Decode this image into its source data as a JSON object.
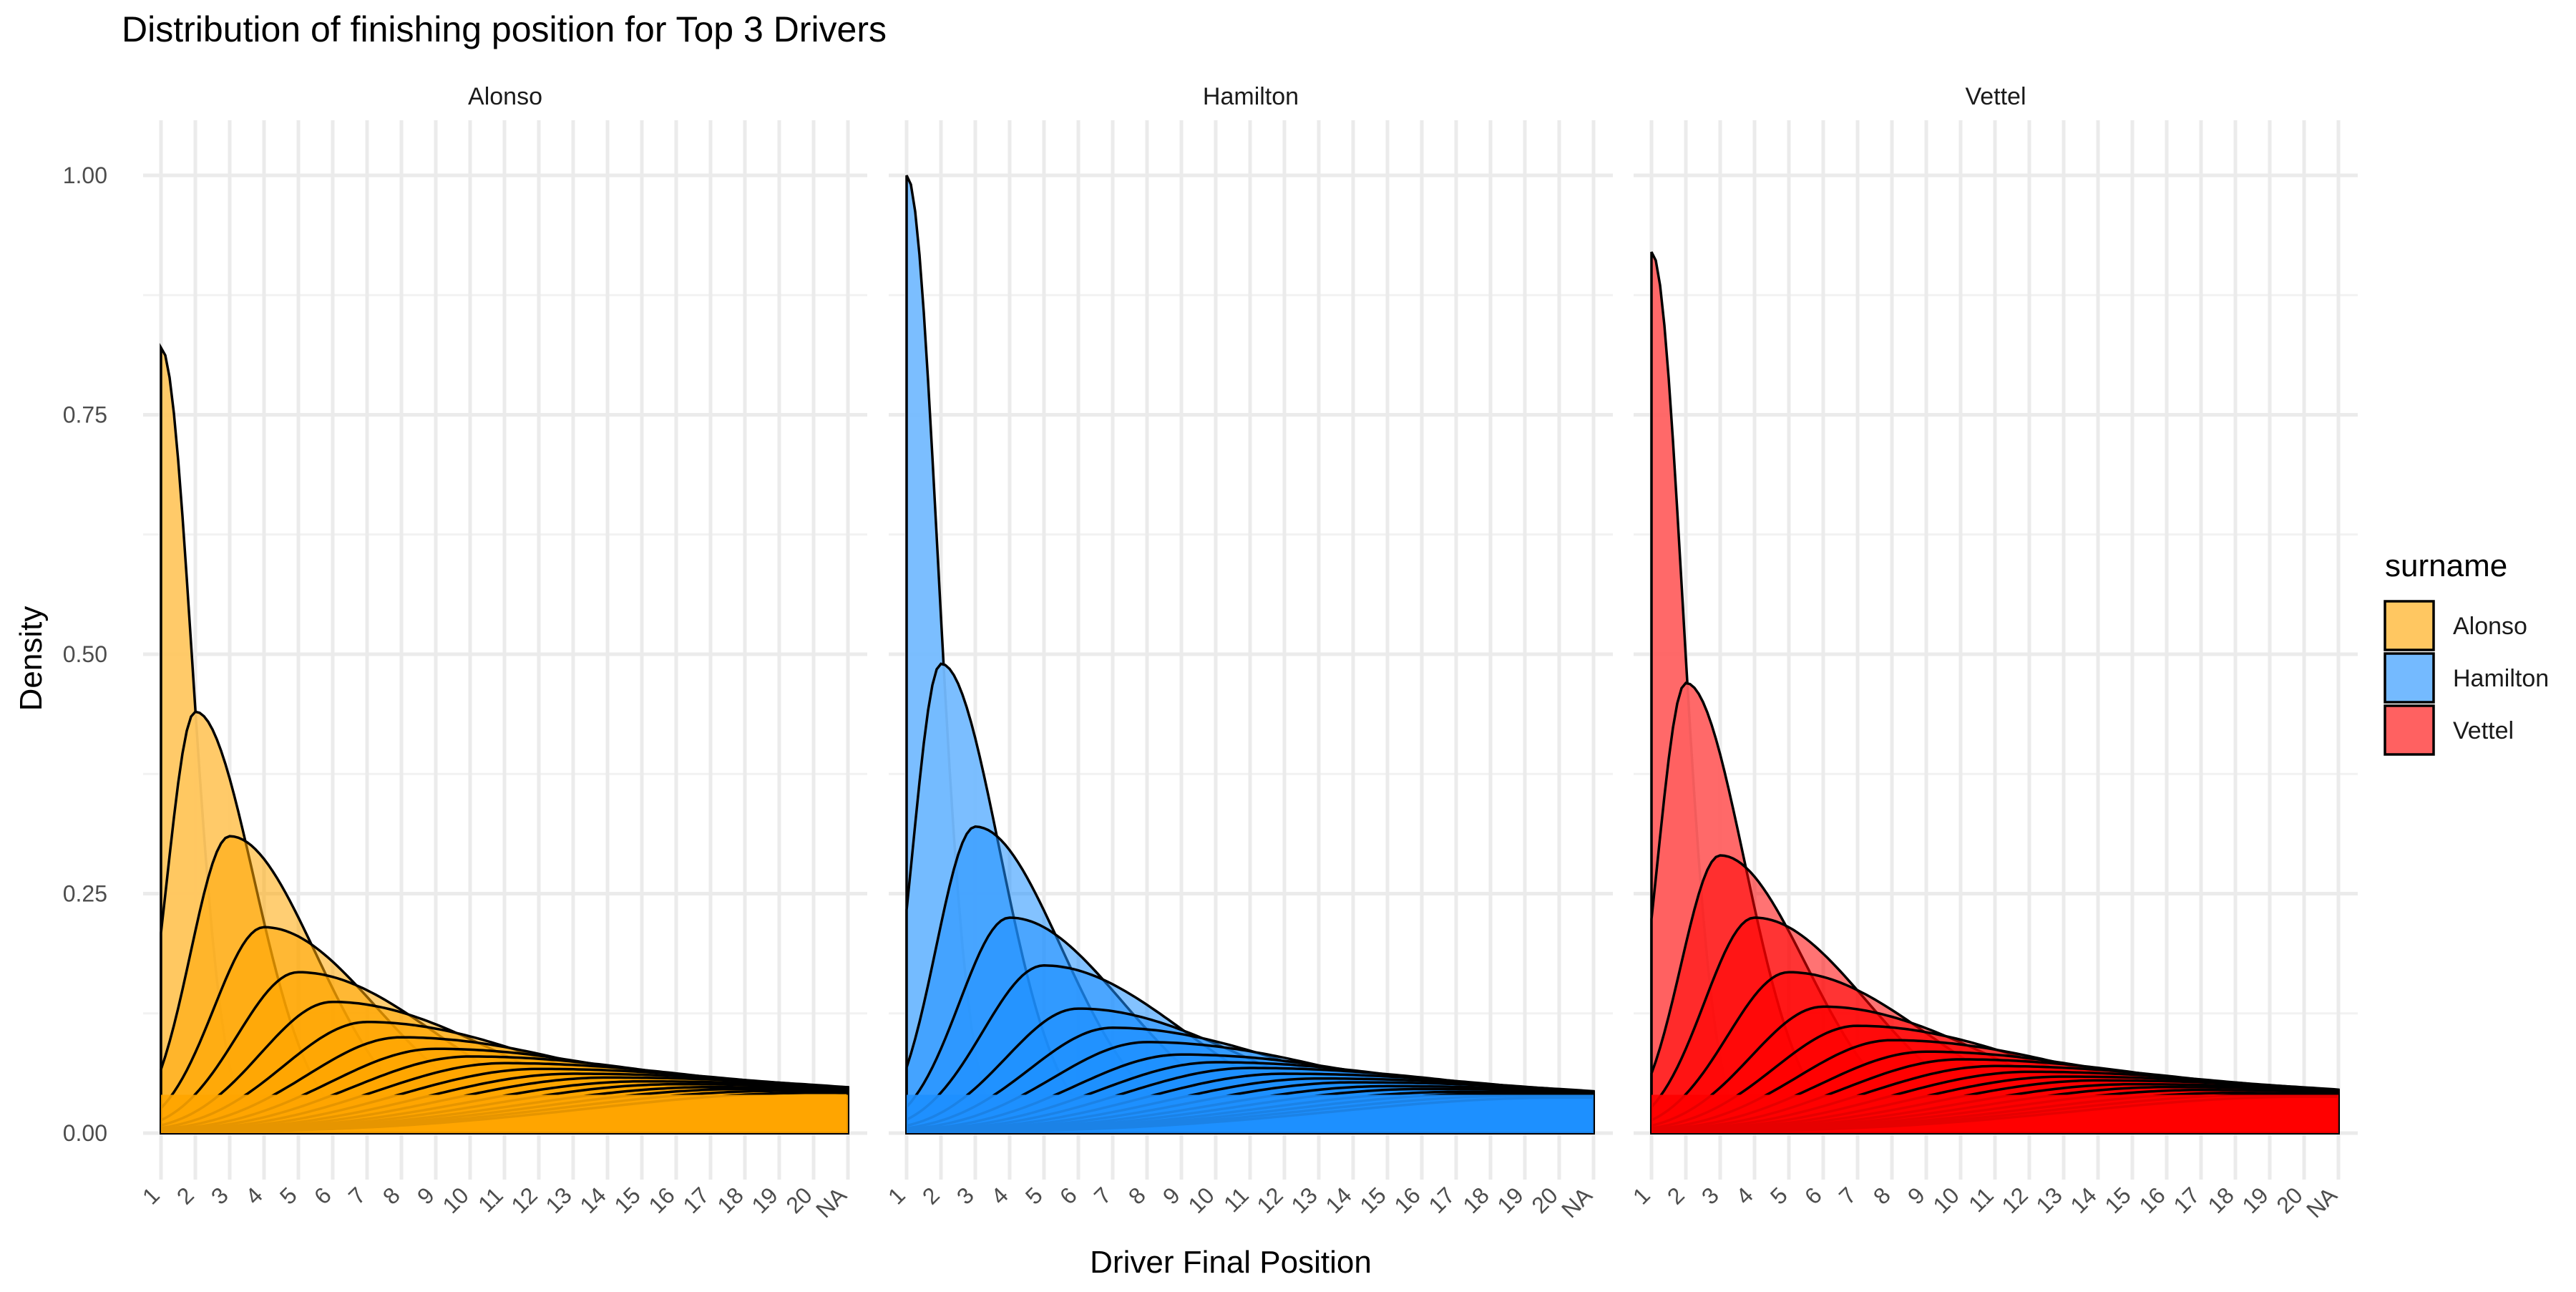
{
  "chart_data": {
    "type": "area",
    "title": "Distribution of finishing position for Top 3 Drivers",
    "xlabel": "Driver Final Position",
    "ylabel": "Density",
    "categories": [
      "1",
      "2",
      "3",
      "4",
      "5",
      "6",
      "7",
      "8",
      "9",
      "10",
      "11",
      "12",
      "13",
      "14",
      "15",
      "16",
      "17",
      "18",
      "19",
      "20",
      "NA"
    ],
    "ylim": [
      0,
      1.0
    ],
    "yticks": [
      0,
      0.25,
      0.5,
      0.75,
      1.0
    ],
    "ytick_labels": [
      "0.00",
      "0.25",
      "0.50",
      "0.75",
      "1.00"
    ],
    "grid": true,
    "legend": {
      "title": "surname",
      "position": "right",
      "items": [
        {
          "label": "Alonso",
          "color": "#FFA500"
        },
        {
          "label": "Hamilton",
          "color": "#1E90FF"
        },
        {
          "label": "Vettel",
          "color": "#FF0000"
        }
      ]
    },
    "facets": [
      {
        "name": "Alonso",
        "color": "#FFA500",
        "peaks": [
          0.82,
          0.44,
          0.31,
          0.215,
          0.168,
          0.137,
          0.116,
          0.1,
          0.088,
          0.08,
          0.073,
          0.067,
          0.062,
          0.058,
          0.054,
          0.051,
          0.048,
          0.046,
          0.044,
          0.042
        ]
      },
      {
        "name": "Hamilton",
        "color": "#1E90FF",
        "peaks": [
          1.0,
          0.49,
          0.32,
          0.225,
          0.175,
          0.13,
          0.11,
          0.095,
          0.082,
          0.074,
          0.068,
          0.062,
          0.057,
          0.053,
          0.049,
          0.046,
          0.043,
          0.041,
          0.039,
          0.037
        ]
      },
      {
        "name": "Vettel",
        "color": "#FF0000",
        "peaks": [
          0.92,
          0.47,
          0.29,
          0.225,
          0.168,
          0.132,
          0.112,
          0.097,
          0.085,
          0.077,
          0.07,
          0.064,
          0.059,
          0.055,
          0.051,
          0.048,
          0.045,
          0.042,
          0.04,
          0.038
        ]
      }
    ]
  }
}
